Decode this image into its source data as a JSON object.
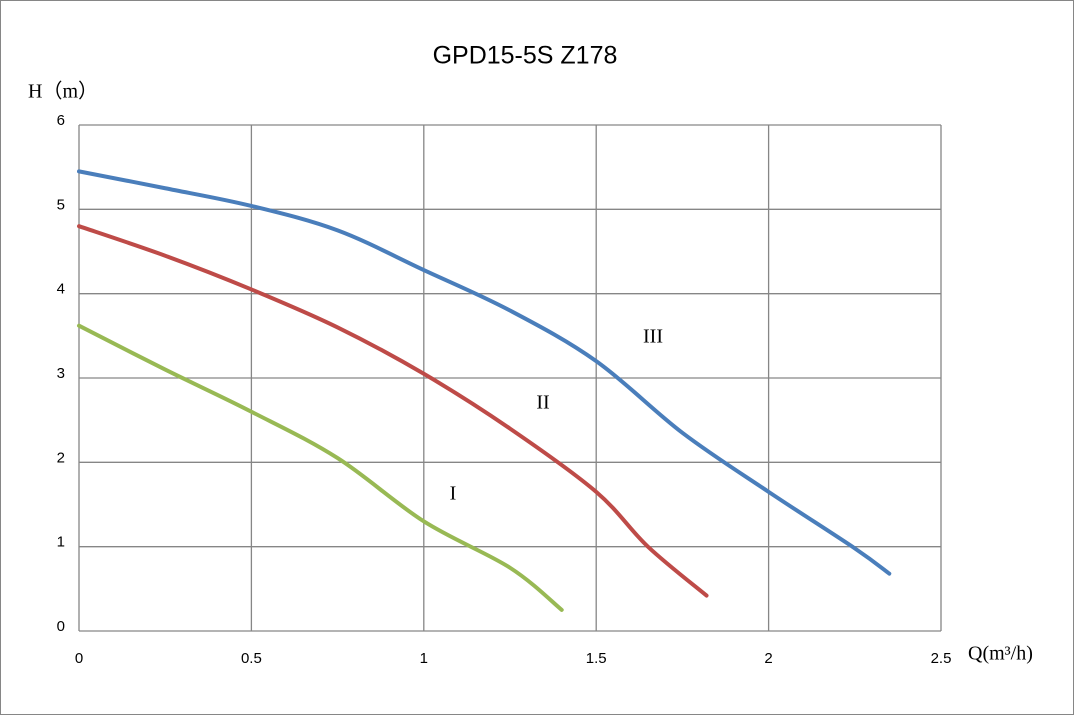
{
  "chart_data": {
    "type": "line",
    "title": "GPD15-5S  Z178",
    "y_label": "H（m）",
    "x_label": "Q(m³/h)",
    "xlim": [
      0,
      2.5
    ],
    "xticks": [
      0,
      0.5,
      1,
      1.5,
      2,
      2.5
    ],
    "ylim": [
      0,
      6
    ],
    "yticks": [
      0,
      1,
      2,
      3,
      4,
      5,
      6
    ],
    "grid": true,
    "series": [
      {
        "name": "I",
        "color": "#98b954",
        "x": [
          0,
          0.25,
          0.5,
          0.75,
          1,
          1.25,
          1.4
        ],
        "values": [
          3.62,
          3.1,
          2.6,
          2.05,
          1.3,
          0.75,
          0.25
        ]
      },
      {
        "name": "II",
        "color": "#be4b48",
        "x": [
          0,
          0.25,
          0.5,
          0.75,
          1,
          1.25,
          1.5,
          1.65,
          1.82
        ],
        "values": [
          4.8,
          4.45,
          4.05,
          3.6,
          3.05,
          2.4,
          1.65,
          1.0,
          0.42
        ]
      },
      {
        "name": "III",
        "color": "#4a7ebb",
        "x": [
          0,
          0.25,
          0.5,
          0.75,
          1,
          1.25,
          1.5,
          1.75,
          2,
          2.25,
          2.35
        ],
        "values": [
          5.45,
          5.25,
          5.04,
          4.75,
          4.28,
          3.8,
          3.2,
          2.35,
          1.65,
          0.98,
          0.68
        ]
      }
    ]
  }
}
